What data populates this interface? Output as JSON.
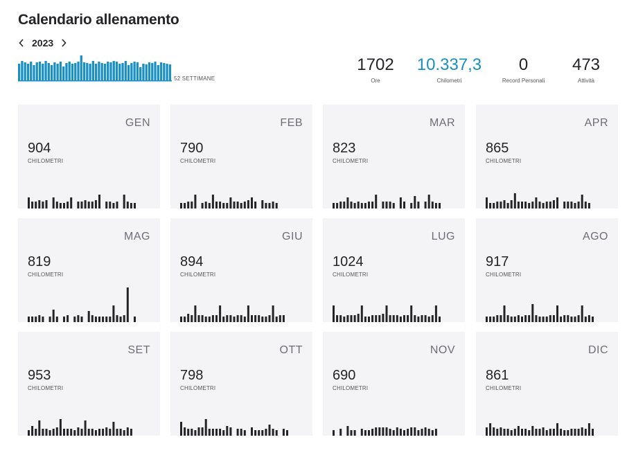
{
  "page": {
    "title": "Calendario allenamento"
  },
  "year_nav": {
    "year": "2023",
    "prev_icon": "chevron-left-icon",
    "next_icon": "chevron-right-icon"
  },
  "weeks": {
    "label": "52 SETTIMANE",
    "color": "#1a8fc3",
    "values": [
      24,
      28,
      26,
      24,
      27,
      22,
      26,
      27,
      24,
      28,
      25,
      22,
      26,
      24,
      27,
      20,
      25,
      27,
      24,
      25,
      27,
      36,
      26,
      25,
      24,
      28,
      24,
      27,
      25,
      24,
      27,
      26,
      28,
      27,
      24,
      25,
      28,
      22,
      25,
      27,
      26,
      19,
      24,
      23,
      26,
      25,
      27,
      22,
      26,
      25,
      24,
      23
    ]
  },
  "stats": [
    {
      "value": "1702",
      "label": "Ore",
      "accent": false
    },
    {
      "value": "10.337,3",
      "label": "Chilometri",
      "accent": true
    },
    {
      "value": "0",
      "label": "Record Personali",
      "accent": false
    },
    {
      "value": "473",
      "label": "Attività",
      "accent": false
    }
  ],
  "bar_color": "#242428",
  "accent_color": "#1a8fc3",
  "months": [
    {
      "name": "GEN",
      "km": "904",
      "unit": "CHILOMETRI",
      "days": [
        16,
        10,
        10,
        12,
        10,
        12,
        0,
        16,
        10,
        8,
        8,
        10,
        16,
        0,
        10,
        10,
        12,
        10,
        10,
        12,
        20,
        0,
        10,
        10,
        8,
        10,
        0,
        20,
        10,
        8,
        8
      ]
    },
    {
      "name": "FEB",
      "km": "790",
      "unit": "CHILOMETRI",
      "days": [
        8,
        8,
        10,
        10,
        20,
        0,
        8,
        10,
        8,
        20,
        10,
        10,
        8,
        8,
        16,
        10,
        10,
        8,
        10,
        12,
        16,
        10,
        0,
        12,
        8,
        8,
        10,
        8
      ]
    },
    {
      "name": "MAR",
      "km": "823",
      "unit": "CHILOMETRI",
      "days": [
        8,
        8,
        10,
        10,
        16,
        10,
        8,
        10,
        8,
        8,
        10,
        10,
        20,
        0,
        10,
        10,
        10,
        8,
        0,
        16,
        10,
        0,
        8,
        18,
        10,
        0,
        10,
        20,
        10,
        8,
        8
      ]
    },
    {
      "name": "APR",
      "km": "865",
      "unit": "CHILOMETRI",
      "days": [
        16,
        8,
        8,
        10,
        10,
        12,
        8,
        12,
        22,
        10,
        10,
        10,
        8,
        10,
        16,
        10,
        8,
        10,
        10,
        12,
        16,
        0,
        10,
        10,
        10,
        8,
        10,
        20,
        10,
        8
      ]
    },
    {
      "name": "MAG",
      "km": "819",
      "unit": "CHILOMETRI",
      "days": [
        8,
        8,
        8,
        10,
        8,
        0,
        8,
        18,
        8,
        0,
        8,
        10,
        0,
        8,
        10,
        8,
        0,
        16,
        10,
        8,
        8,
        8,
        8,
        8,
        24,
        10,
        8,
        10,
        50,
        0,
        8
      ]
    },
    {
      "name": "GIU",
      "km": "894",
      "unit": "CHILOMETRI",
      "days": [
        8,
        8,
        12,
        10,
        24,
        10,
        10,
        8,
        8,
        10,
        10,
        24,
        8,
        10,
        10,
        8,
        10,
        10,
        8,
        24,
        10,
        10,
        10,
        8,
        8,
        10,
        24,
        8,
        10,
        10
      ]
    },
    {
      "name": "LUG",
      "km": "1024",
      "unit": "CHILOMETRI",
      "days": [
        24,
        10,
        10,
        8,
        10,
        10,
        10,
        12,
        24,
        8,
        8,
        10,
        10,
        10,
        12,
        24,
        10,
        10,
        10,
        8,
        10,
        10,
        24,
        10,
        8,
        10,
        10,
        8,
        10,
        24,
        8
      ]
    },
    {
      "name": "AGO",
      "km": "917",
      "unit": "CHILOMETRI",
      "days": [
        8,
        8,
        8,
        10,
        10,
        24,
        10,
        8,
        8,
        10,
        8,
        10,
        10,
        26,
        10,
        8,
        8,
        8,
        10,
        10,
        24,
        8,
        10,
        10,
        8,
        8,
        10,
        24,
        8,
        10,
        8
      ]
    },
    {
      "name": "SET",
      "km": "953",
      "unit": "CHILOMETRI",
      "days": [
        8,
        14,
        10,
        22,
        10,
        10,
        8,
        10,
        12,
        24,
        10,
        10,
        10,
        8,
        12,
        10,
        22,
        10,
        10,
        8,
        10,
        10,
        12,
        10,
        20,
        10,
        10,
        8,
        12,
        10
      ]
    },
    {
      "name": "OTT",
      "km": "798",
      "unit": "CHILOMETRI",
      "days": [
        20,
        12,
        10,
        10,
        8,
        12,
        12,
        24,
        10,
        10,
        10,
        10,
        8,
        14,
        12,
        0,
        10,
        10,
        8,
        0,
        12,
        8,
        8,
        8,
        10,
        16,
        10,
        8,
        0,
        10,
        8
      ]
    },
    {
      "name": "NOV",
      "km": "690",
      "unit": "CHILOMETRI",
      "days": [
        8,
        0,
        10,
        0,
        14,
        8,
        8,
        0,
        10,
        8,
        8,
        10,
        12,
        12,
        12,
        12,
        10,
        8,
        12,
        10,
        8,
        10,
        12,
        12,
        8,
        10,
        12,
        10,
        8,
        10
      ]
    },
    {
      "name": "DIC",
      "km": "861",
      "unit": "CHILOMETRI",
      "days": [
        12,
        18,
        12,
        10,
        12,
        10,
        10,
        8,
        10,
        14,
        10,
        10,
        8,
        14,
        10,
        10,
        12,
        8,
        10,
        10,
        18,
        10,
        8,
        8,
        10,
        10,
        10,
        12,
        10,
        18,
        10
      ]
    }
  ]
}
